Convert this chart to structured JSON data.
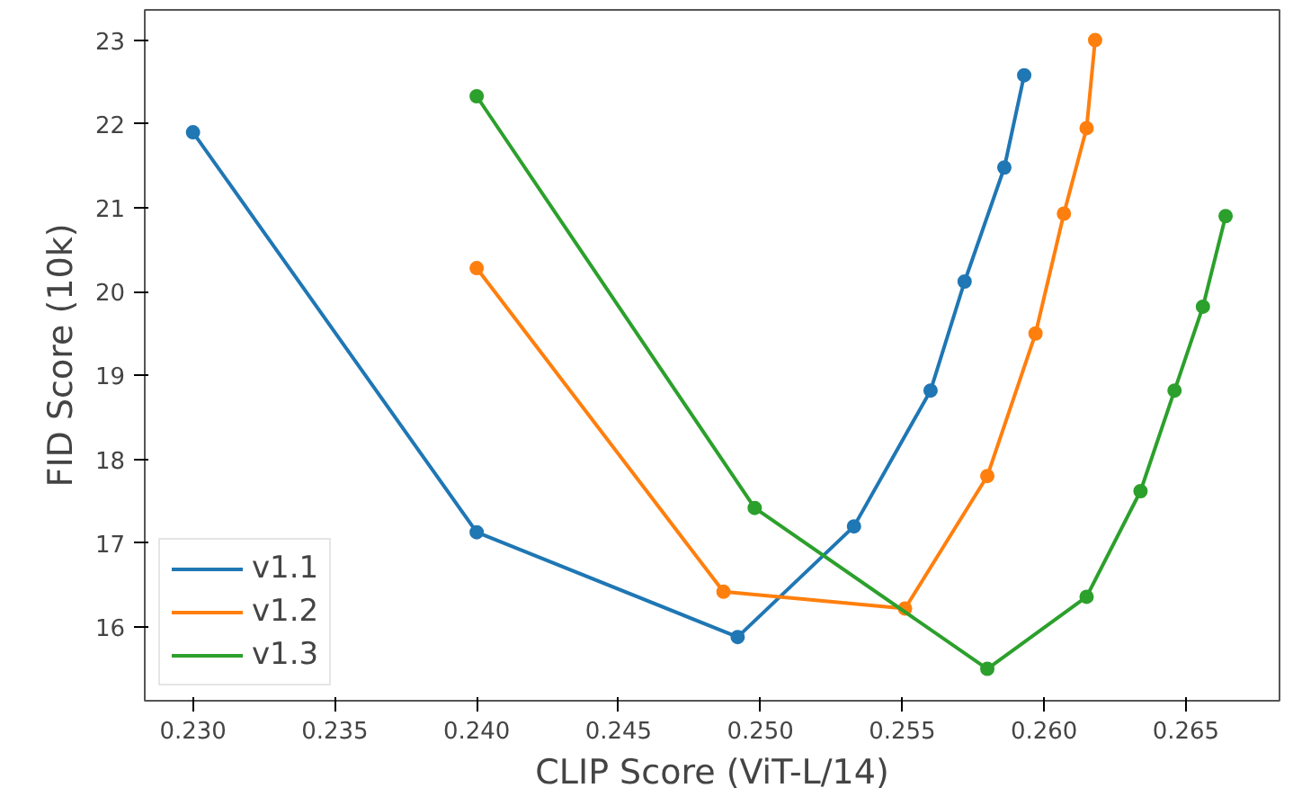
{
  "chart_data": {
    "type": "line",
    "xlabel": "CLIP Score (ViT-L/14)",
    "ylabel": "FID Score (10k)",
    "marker": "circle",
    "legend": "bottom left",
    "grid": false,
    "xlim": [
      0.2283,
      0.2683
    ],
    "xticks": [
      {
        "value": 0.23,
        "label": "0.230"
      },
      {
        "value": 0.235,
        "label": "0.235"
      },
      {
        "value": 0.24,
        "label": "0.240"
      },
      {
        "value": 0.245,
        "label": "0.245"
      },
      {
        "value": 0.25,
        "label": "0.250"
      },
      {
        "value": 0.255,
        "label": "0.255"
      },
      {
        "value": 0.26,
        "label": "0.260"
      },
      {
        "value": 0.265,
        "label": "0.265"
      }
    ],
    "ylim": [
      15.12,
      23.36
    ],
    "yticks": [
      16,
      17,
      18,
      19,
      20,
      21,
      22,
      23
    ],
    "series": [
      {
        "name": "v1.1",
        "color": "#1f77b4",
        "x": [
          0.23,
          0.24,
          0.2492,
          0.2533,
          0.256,
          0.2572,
          0.2586,
          0.2593
        ],
        "values": [
          21.9,
          17.13,
          15.88,
          17.2,
          18.82,
          20.12,
          21.48,
          22.58
        ]
      },
      {
        "name": "v1.2",
        "color": "#ff7f0e",
        "x": [
          0.24,
          0.2487,
          0.2551,
          0.258,
          0.2597,
          0.2607,
          0.2615,
          0.2618
        ],
        "values": [
          20.28,
          16.42,
          16.22,
          17.8,
          19.5,
          20.93,
          21.95,
          23.0
        ]
      },
      {
        "name": "v1.3",
        "color": "#2ca02c",
        "x": [
          0.24,
          0.2498,
          0.258,
          0.2615,
          0.2634,
          0.2646,
          0.2656,
          0.2664
        ],
        "values": [
          22.33,
          17.42,
          15.5,
          16.36,
          17.62,
          18.82,
          19.82,
          20.9
        ]
      }
    ]
  }
}
